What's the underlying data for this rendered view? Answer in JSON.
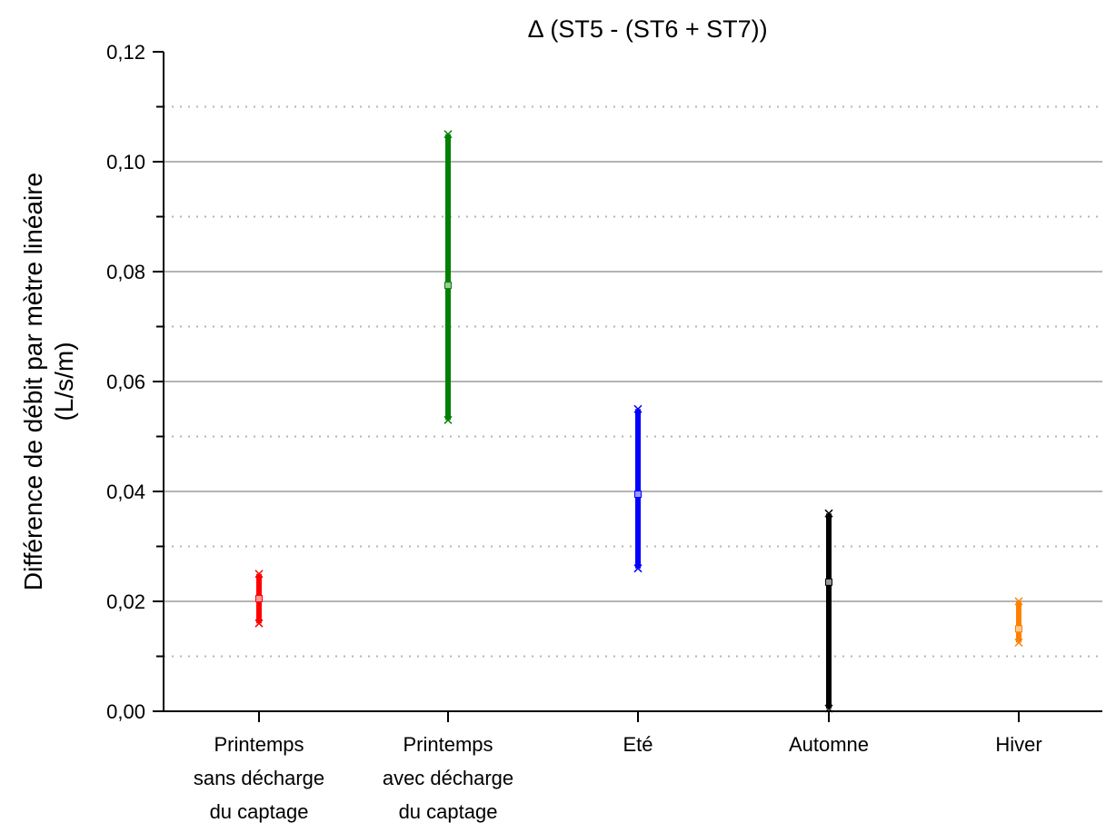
{
  "chart_data": {
    "type": "range",
    "title": "∆ (ST5 - (ST6 + ST7))",
    "xlabel": "",
    "ylabel": {
      "line1": "Différence de débit par mètre linéaire",
      "line2": "(L/s/m)"
    },
    "ylim": [
      0,
      0.12
    ],
    "yticks": [
      "0,00",
      "0,02",
      "0,04",
      "0,06",
      "0,08",
      "0,10",
      "0,12"
    ],
    "ytick_values": [
      0,
      0.02,
      0.04,
      0.06,
      0.08,
      0.1,
      0.12
    ],
    "grid": {
      "major": [
        0.02,
        0.04,
        0.06,
        0.08,
        0.1
      ],
      "minor_dotted": [
        0.01,
        0.03,
        0.05,
        0.07,
        0.09,
        0.11
      ]
    },
    "categories": [
      {
        "label": [
          "Printemps",
          "sans décharge",
          "du captage"
        ],
        "min": 0.016,
        "mid": 0.0205,
        "max": 0.025,
        "color": "#ff0000"
      },
      {
        "label": [
          "Printemps",
          "avec décharge",
          "du captage"
        ],
        "min": 0.053,
        "mid": 0.0775,
        "max": 0.105,
        "color": "#008000"
      },
      {
        "label": [
          "Eté"
        ],
        "min": 0.026,
        "mid": 0.0395,
        "max": 0.055,
        "color": "#0000ff"
      },
      {
        "label": [
          "Automne"
        ],
        "min": 0.0005,
        "mid": 0.0235,
        "max": 0.036,
        "color": "#000000"
      },
      {
        "label": [
          "Hiver"
        ],
        "min": 0.0125,
        "mid": 0.015,
        "max": 0.02,
        "color": "#ff8000"
      }
    ]
  }
}
